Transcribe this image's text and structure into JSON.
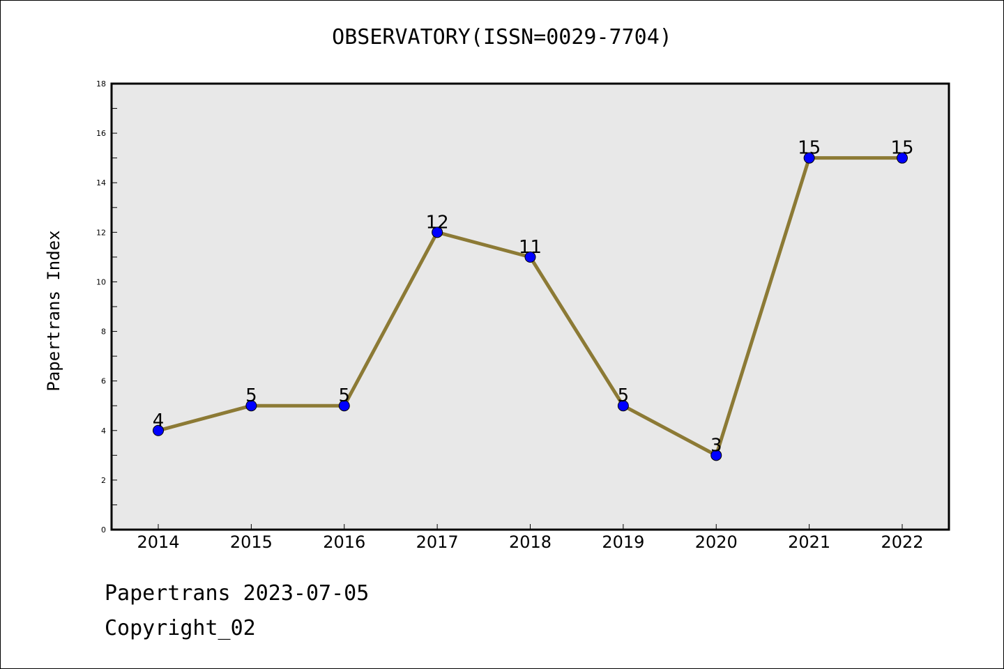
{
  "colors": {
    "plot_background": "#e8e8e8",
    "line": "#8c7a35",
    "marker": "#0000ff",
    "axis": "#000000"
  },
  "footer": {
    "line1": "Papertrans 2023-07-05",
    "line2": "Copyright_02"
  },
  "chart_data": {
    "type": "line",
    "title": "OBSERVATORY(ISSN=0029-7704)",
    "xlabel": "",
    "ylabel": "Papertrans Index",
    "categories": [
      "2014",
      "2015",
      "2016",
      "2017",
      "2018",
      "2019",
      "2020",
      "2021",
      "2022"
    ],
    "values": [
      4,
      5,
      5,
      12,
      11,
      5,
      3,
      15,
      15
    ],
    "data_labels": [
      "4",
      "5",
      "5",
      "12",
      "11",
      "5",
      "3",
      "15",
      "15"
    ],
    "ylim": [
      0,
      18
    ],
    "yticks": [
      "0",
      "2",
      "4",
      "6",
      "8",
      "10",
      "12",
      "14",
      "16",
      "18"
    ],
    "grid": false,
    "legend": "none"
  }
}
